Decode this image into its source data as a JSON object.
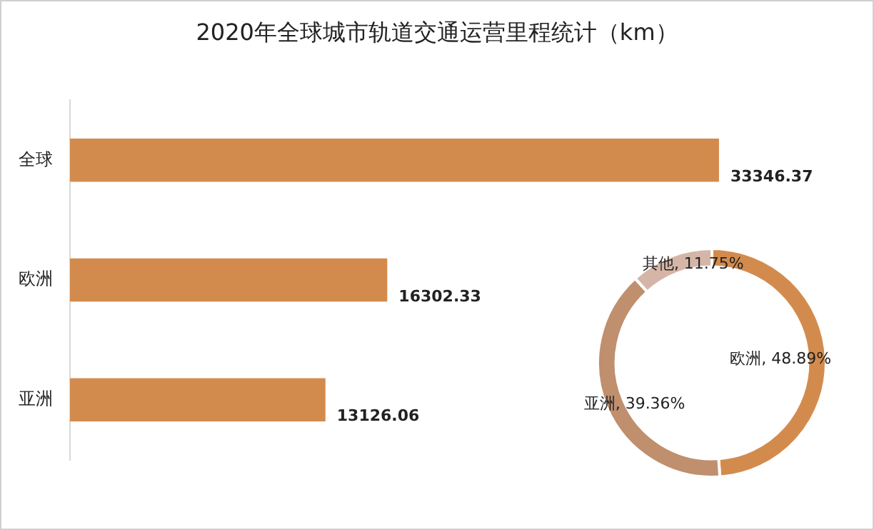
{
  "chart_data": [
    {
      "type": "bar",
      "title": "2020年全球城市轨道交通运营里程统计（km）",
      "orientation": "horizontal",
      "categories": [
        "全球",
        "欧洲",
        "亚洲"
      ],
      "values": [
        33346.37,
        16302.33,
        13126.06
      ],
      "color": "#d38b4d",
      "data_labels": true
    },
    {
      "type": "donut",
      "categories": [
        "欧洲",
        "亚洲",
        "其他"
      ],
      "values": [
        48.89,
        39.36,
        11.75
      ],
      "colors": [
        "#d38b4d",
        "#bf8f6e",
        "#d5b5a7"
      ],
      "value_labels": [
        ", 48.89%",
        ", 39.36%",
        ", 11.75%"
      ]
    }
  ]
}
